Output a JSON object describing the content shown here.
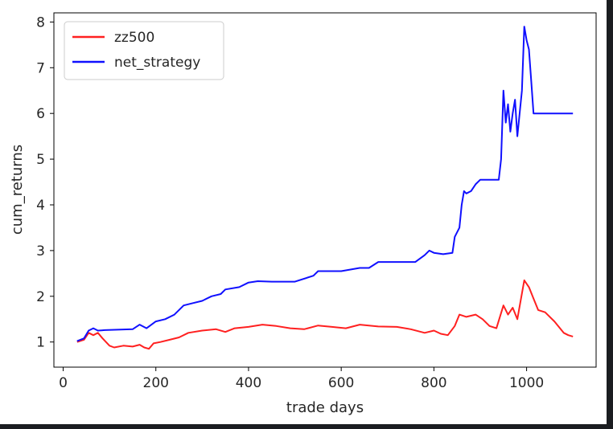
{
  "chart_data": {
    "type": "line",
    "title": "",
    "xlabel": "trade days",
    "ylabel": "cum_returns",
    "xlim": [
      -20,
      1150
    ],
    "ylim": [
      0.45,
      8.2
    ],
    "x_ticks": [
      0,
      200,
      400,
      600,
      800,
      1000
    ],
    "y_ticks": [
      1,
      2,
      3,
      4,
      5,
      6,
      7,
      8
    ],
    "grid": false,
    "legend_position": "top-left",
    "series": [
      {
        "name": "zz500",
        "color": "#ff2020",
        "points": [
          [
            30,
            1.0
          ],
          [
            45,
            1.05
          ],
          [
            55,
            1.2
          ],
          [
            65,
            1.15
          ],
          [
            75,
            1.2
          ],
          [
            85,
            1.08
          ],
          [
            100,
            0.92
          ],
          [
            110,
            0.88
          ],
          [
            130,
            0.92
          ],
          [
            150,
            0.9
          ],
          [
            165,
            0.94
          ],
          [
            175,
            0.88
          ],
          [
            185,
            0.85
          ],
          [
            195,
            0.97
          ],
          [
            210,
            1.0
          ],
          [
            230,
            1.05
          ],
          [
            250,
            1.1
          ],
          [
            270,
            1.2
          ],
          [
            300,
            1.25
          ],
          [
            330,
            1.28
          ],
          [
            350,
            1.22
          ],
          [
            370,
            1.3
          ],
          [
            400,
            1.33
          ],
          [
            430,
            1.38
          ],
          [
            460,
            1.35
          ],
          [
            490,
            1.3
          ],
          [
            520,
            1.28
          ],
          [
            550,
            1.36
          ],
          [
            580,
            1.33
          ],
          [
            610,
            1.3
          ],
          [
            640,
            1.38
          ],
          [
            680,
            1.34
          ],
          [
            720,
            1.33
          ],
          [
            750,
            1.28
          ],
          [
            780,
            1.2
          ],
          [
            800,
            1.25
          ],
          [
            815,
            1.18
          ],
          [
            830,
            1.15
          ],
          [
            845,
            1.35
          ],
          [
            855,
            1.6
          ],
          [
            870,
            1.55
          ],
          [
            890,
            1.6
          ],
          [
            905,
            1.5
          ],
          [
            920,
            1.35
          ],
          [
            935,
            1.3
          ],
          [
            950,
            1.8
          ],
          [
            960,
            1.6
          ],
          [
            970,
            1.75
          ],
          [
            980,
            1.5
          ],
          [
            995,
            2.35
          ],
          [
            1005,
            2.2
          ],
          [
            1015,
            1.95
          ],
          [
            1025,
            1.7
          ],
          [
            1040,
            1.65
          ],
          [
            1060,
            1.45
          ],
          [
            1080,
            1.2
          ],
          [
            1090,
            1.15
          ],
          [
            1100,
            1.12
          ]
        ]
      },
      {
        "name": "net_strategy",
        "color": "#1010ff",
        "points": [
          [
            30,
            1.02
          ],
          [
            45,
            1.08
          ],
          [
            55,
            1.25
          ],
          [
            65,
            1.3
          ],
          [
            75,
            1.25
          ],
          [
            90,
            1.26
          ],
          [
            150,
            1.28
          ],
          [
            165,
            1.38
          ],
          [
            180,
            1.3
          ],
          [
            200,
            1.45
          ],
          [
            220,
            1.5
          ],
          [
            240,
            1.6
          ],
          [
            260,
            1.8
          ],
          [
            280,
            1.85
          ],
          [
            300,
            1.9
          ],
          [
            320,
            2.0
          ],
          [
            340,
            2.05
          ],
          [
            350,
            2.15
          ],
          [
            380,
            2.2
          ],
          [
            400,
            2.3
          ],
          [
            420,
            2.33
          ],
          [
            450,
            2.32
          ],
          [
            500,
            2.32
          ],
          [
            540,
            2.45
          ],
          [
            550,
            2.55
          ],
          [
            600,
            2.55
          ],
          [
            640,
            2.62
          ],
          [
            660,
            2.62
          ],
          [
            680,
            2.75
          ],
          [
            760,
            2.75
          ],
          [
            780,
            2.9
          ],
          [
            790,
            3.0
          ],
          [
            800,
            2.95
          ],
          [
            820,
            2.92
          ],
          [
            840,
            2.95
          ],
          [
            845,
            3.3
          ],
          [
            855,
            3.5
          ],
          [
            860,
            4.0
          ],
          [
            865,
            4.3
          ],
          [
            870,
            4.25
          ],
          [
            880,
            4.3
          ],
          [
            890,
            4.45
          ],
          [
            900,
            4.55
          ],
          [
            940,
            4.55
          ],
          [
            945,
            5.0
          ],
          [
            950,
            6.5
          ],
          [
            955,
            5.8
          ],
          [
            960,
            6.2
          ],
          [
            965,
            5.6
          ],
          [
            970,
            6.0
          ],
          [
            975,
            6.3
          ],
          [
            980,
            5.5
          ],
          [
            990,
            6.5
          ],
          [
            995,
            7.9
          ],
          [
            1000,
            7.6
          ],
          [
            1005,
            7.4
          ],
          [
            1010,
            6.7
          ],
          [
            1015,
            6.0
          ],
          [
            1100,
            6.0
          ]
        ]
      }
    ]
  }
}
